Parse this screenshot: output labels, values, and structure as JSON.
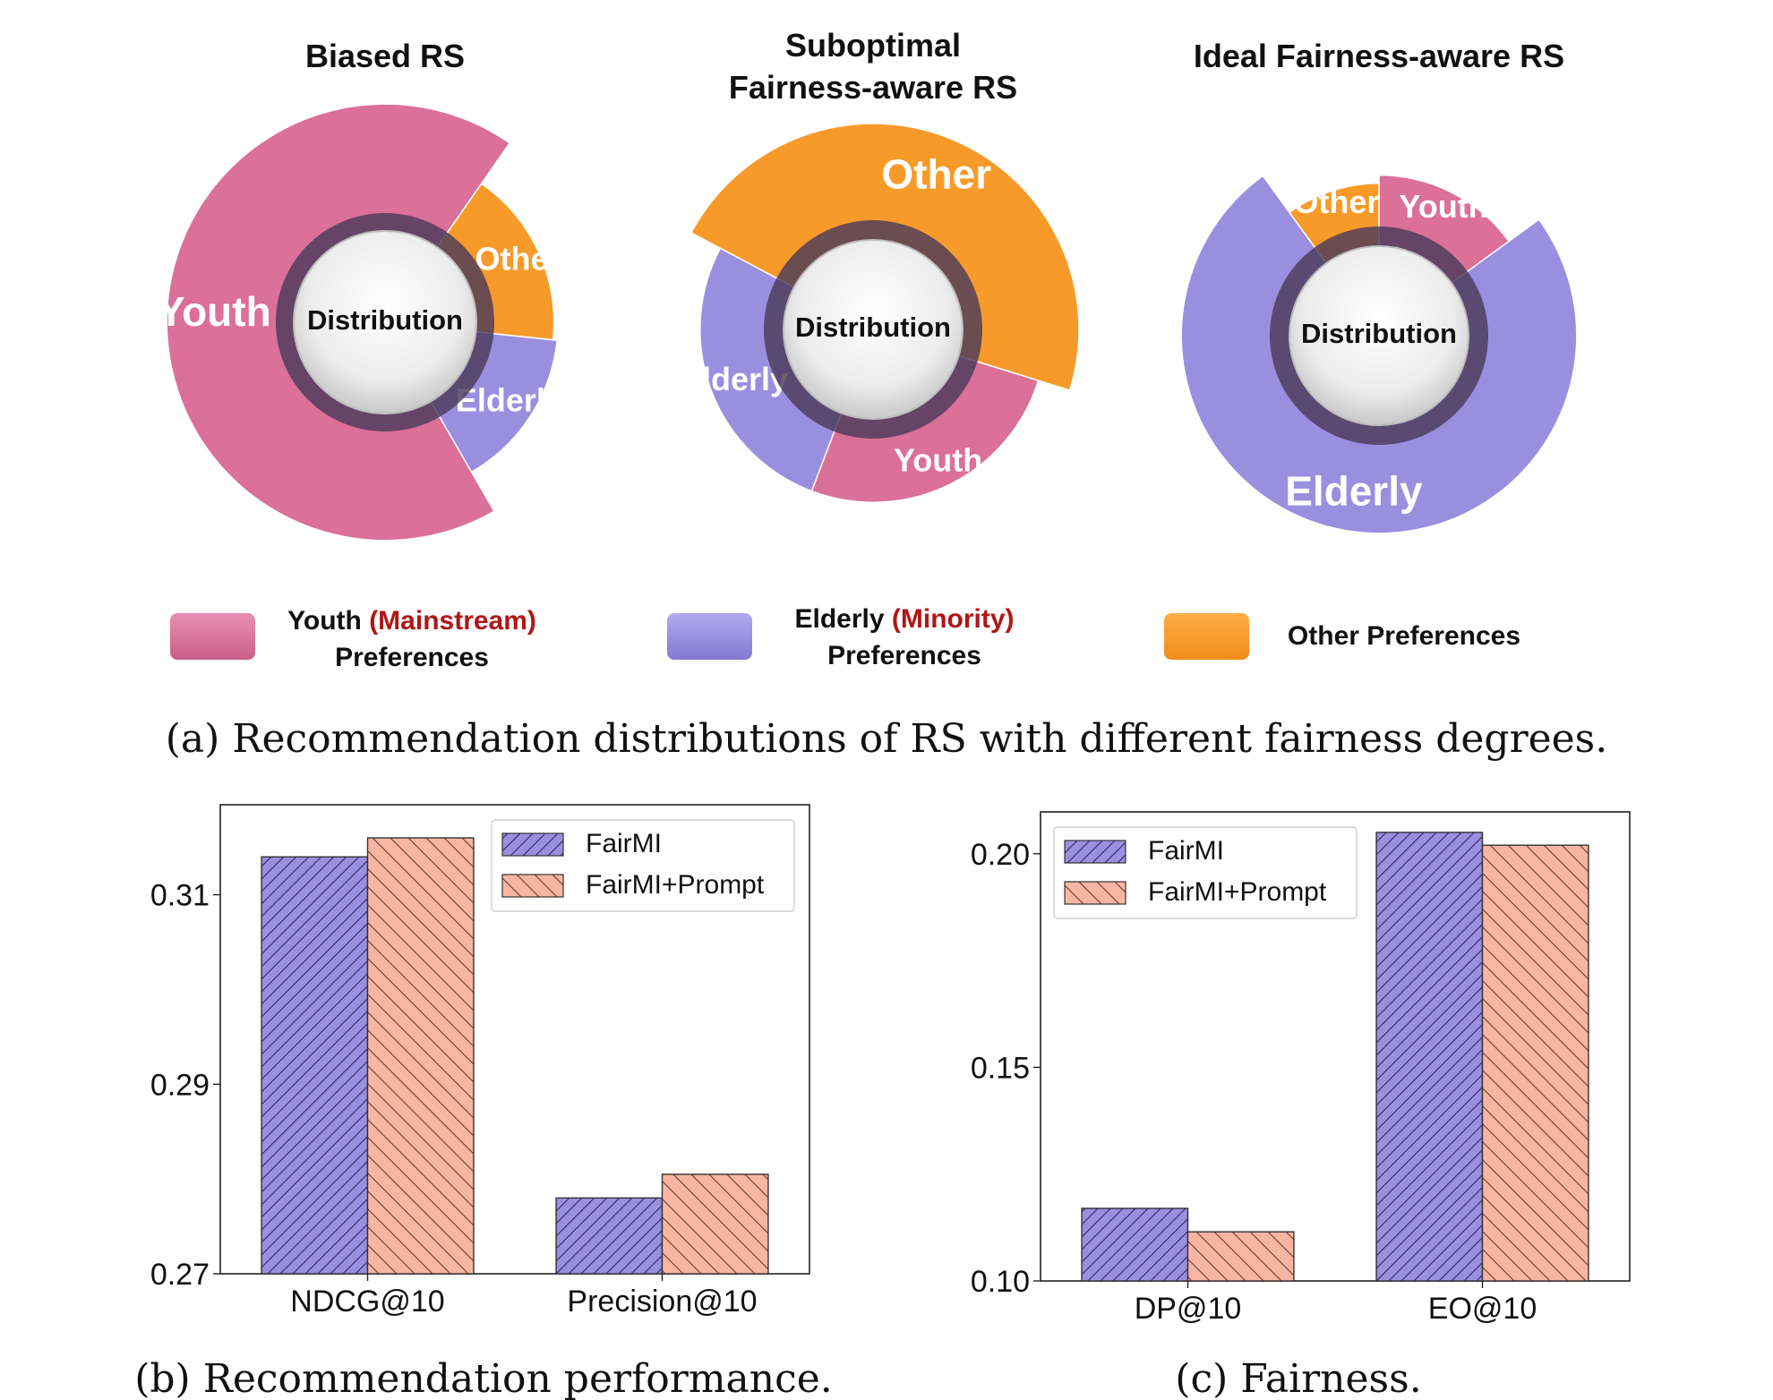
{
  "colors": {
    "youth": "#db7099",
    "elderly": "#9a8fdf",
    "other": "#f89a2a",
    "fairmi": "#9a8fdf",
    "prompt": "#f8b6a2",
    "ring": "#4a3a5a",
    "highlight": "#b01616",
    "bar_border": "#333333"
  },
  "donuts": [
    {
      "title_lines": [
        "Biased RS"
      ],
      "center": "Distribution",
      "segments": [
        {
          "label": "Youth",
          "category": "youth",
          "share": 0.68,
          "extent": 1.06
        },
        {
          "label": "Other",
          "category": "other",
          "share": 0.17,
          "extent": 0.82
        },
        {
          "label": "Elderly",
          "category": "elderly",
          "share": 0.15,
          "extent": 0.84
        }
      ]
    },
    {
      "title_lines": [
        "Suboptimal",
        "Fairness-aware RS"
      ],
      "center": "Distribution",
      "segments": [
        {
          "label": "Other",
          "category": "other",
          "share": 0.47,
          "extent": 1.0
        },
        {
          "label": "Youth",
          "category": "youth",
          "share": 0.26,
          "extent": 0.84
        },
        {
          "label": "Elderly",
          "category": "elderly",
          "share": 0.27,
          "extent": 0.84
        }
      ]
    },
    {
      "title_lines": [
        "Ideal Fairness-aware RS"
      ],
      "center": "Distribution",
      "segments": [
        {
          "label": "Youth",
          "category": "youth",
          "share": 0.15,
          "extent": 0.78
        },
        {
          "label": "Elderly",
          "category": "elderly",
          "share": 0.75,
          "extent": 0.96
        },
        {
          "label": "Other",
          "category": "other",
          "share": 0.1,
          "extent": 0.74
        }
      ]
    }
  ],
  "legend": [
    {
      "category": "youth",
      "bold": "Youth",
      "highlight": "(Mainstream)",
      "line2": "Preferences"
    },
    {
      "category": "elderly",
      "bold": "Elderly",
      "highlight": "(Minority)",
      "line2": "Preferences"
    },
    {
      "category": "other",
      "bold": "Other Preferences",
      "highlight": "",
      "line2": ""
    }
  ],
  "caption_a": {
    "tag": "(a)",
    "text": "Recommendation distributions of RS with different fairness degrees."
  },
  "chart_data": [
    {
      "type": "bar",
      "categories": [
        "NDCG@10",
        "Precision@10"
      ],
      "series": [
        {
          "name": "FairMI",
          "values": [
            0.314,
            0.278
          ]
        },
        {
          "name": "FairMI+Prompt",
          "values": [
            0.316,
            0.2805
          ]
        }
      ],
      "ylim": [
        0.27,
        0.3195
      ],
      "yticks": [
        0.27,
        0.29,
        0.31
      ],
      "ytick_labels": [
        "0.27",
        "0.29",
        "0.31"
      ],
      "legend_position": "top-right",
      "caption_tag": "(b)",
      "caption_text": "Recommendation performance."
    },
    {
      "type": "bar",
      "categories": [
        "DP@10",
        "EO@10"
      ],
      "series": [
        {
          "name": "FairMI",
          "values": [
            0.117,
            0.205
          ]
        },
        {
          "name": "FairMI+Prompt",
          "values": [
            0.1115,
            0.202
          ]
        }
      ],
      "ylim": [
        0.1,
        0.2098
      ],
      "yticks": [
        0.1,
        0.15,
        0.2
      ],
      "ytick_labels": [
        "0.10",
        "0.15",
        "0.20"
      ],
      "legend_position": "top-left",
      "caption_tag": "(c)",
      "caption_text": "Fairness."
    }
  ]
}
